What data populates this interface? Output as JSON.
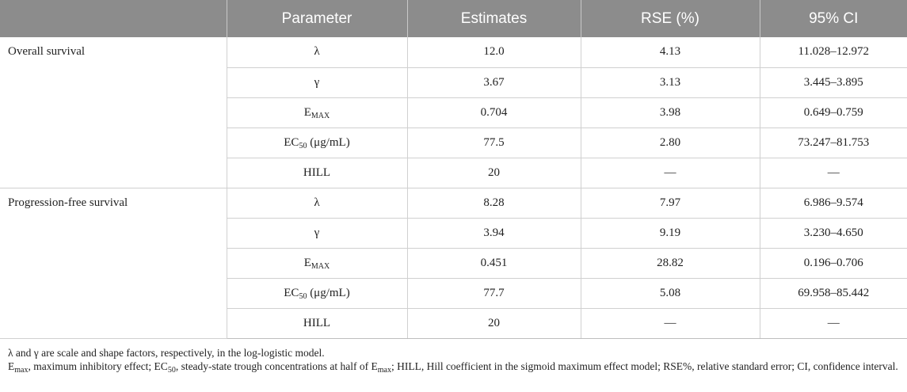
{
  "table": {
    "headers": [
      "Parameter",
      "Estimates",
      "RSE (%)",
      "95% CI"
    ],
    "groups": [
      {
        "name": "Overall survival",
        "rows": [
          {
            "param": "λ",
            "param_sub": "",
            "param_suffix": "",
            "estimate": "12.0",
            "rse": "4.13",
            "ci": "11.028–12.972"
          },
          {
            "param": "γ",
            "param_sub": "",
            "param_suffix": "",
            "estimate": "3.67",
            "rse": "3.13",
            "ci": "3.445–3.895"
          },
          {
            "param": "E",
            "param_sub": "MAX",
            "param_suffix": "",
            "estimate": "0.704",
            "rse": "3.98",
            "ci": "0.649–0.759"
          },
          {
            "param": "EC",
            "param_sub": "50",
            "param_suffix": " (μg/mL)",
            "estimate": "77.5",
            "rse": "2.80",
            "ci": "73.247–81.753"
          },
          {
            "param": "HILL",
            "param_sub": "",
            "param_suffix": "",
            "estimate": "20",
            "rse": "—",
            "ci": "—"
          }
        ]
      },
      {
        "name": "Progression-free survival",
        "rows": [
          {
            "param": "λ",
            "param_sub": "",
            "param_suffix": "",
            "estimate": "8.28",
            "rse": "7.97",
            "ci": "6.986–9.574"
          },
          {
            "param": "γ",
            "param_sub": "",
            "param_suffix": "",
            "estimate": "3.94",
            "rse": "9.19",
            "ci": "3.230–4.650"
          },
          {
            "param": "E",
            "param_sub": "MAX",
            "param_suffix": "",
            "estimate": "0.451",
            "rse": "28.82",
            "ci": "0.196–0.706"
          },
          {
            "param": "EC",
            "param_sub": "50",
            "param_suffix": " (μg/mL)",
            "estimate": "77.7",
            "rse": "5.08",
            "ci": "69.958–85.442"
          },
          {
            "param": "HILL",
            "param_sub": "",
            "param_suffix": "",
            "estimate": "20",
            "rse": "—",
            "ci": "—"
          }
        ]
      }
    ]
  },
  "footnotes": {
    "line1": "λ and γ are scale and shape factors, respectively, in the log-logistic model.",
    "line2_parts": {
      "a": "E",
      "a_sub": "max",
      "b": ", maximum inhibitory effect; EC",
      "b_sub": "50",
      "c": ", steady-state trough concentrations at half of E",
      "c_sub": "max",
      "d": "; HILL, Hill coefficient in the sigmoid maximum effect model; RSE%, relative standard error; CI, confidence interval."
    }
  },
  "colors": {
    "header_bg": "#8c8c8c",
    "header_text": "#ffffff",
    "grid": "#d0d0d0"
  }
}
